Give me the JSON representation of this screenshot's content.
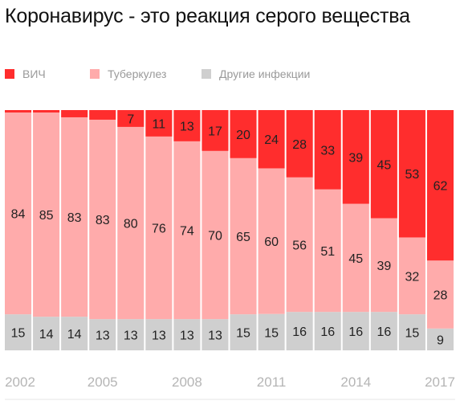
{
  "title": "Коронавирус - это реакция серого вещества",
  "legend": [
    {
      "label": "ВИЧ",
      "color": "#ff2d2d"
    },
    {
      "label": "Туберкулез",
      "color": "#ffabab"
    },
    {
      "label": "Другие инфекции",
      "color": "#cfcfcf"
    }
  ],
  "chart_data": {
    "type": "bar",
    "stacked": true,
    "percent_scale": true,
    "categories": [
      "2002",
      "2003",
      "2004",
      "2005",
      "2006",
      "2007",
      "2008",
      "2009",
      "2010",
      "2011",
      "2012",
      "2013",
      "2014",
      "2015",
      "2016",
      "2017"
    ],
    "series": [
      {
        "name": "Другие инфекции",
        "color": "#cfcfcf",
        "values": [
          15,
          14,
          14,
          13,
          13,
          13,
          13,
          13,
          15,
          15,
          16,
          16,
          16,
          16,
          15,
          9
        ]
      },
      {
        "name": "Туберкулез",
        "color": "#ffabab",
        "values": [
          84,
          85,
          83,
          83,
          80,
          76,
          74,
          70,
          65,
          60,
          56,
          51,
          45,
          39,
          32,
          28
        ]
      },
      {
        "name": "ВИЧ",
        "color": "#ff2d2d",
        "values": [
          1,
          1,
          3,
          4,
          7,
          11,
          13,
          17,
          20,
          24,
          28,
          33,
          39,
          45,
          53,
          62
        ]
      }
    ],
    "shown_labels": [
      [
        true,
        true,
        true,
        true,
        true,
        true,
        true,
        true,
        true,
        true,
        true,
        true,
        true,
        true,
        true,
        true
      ],
      [
        true,
        true,
        true,
        true,
        true,
        true,
        true,
        true,
        true,
        true,
        true,
        true,
        true,
        true,
        true,
        true
      ],
      [
        false,
        false,
        false,
        false,
        true,
        true,
        true,
        true,
        true,
        true,
        true,
        true,
        true,
        true,
        true,
        true
      ]
    ],
    "x_tick_labels": [
      "2002",
      "2005",
      "2008",
      "2011",
      "2014",
      "2017"
    ],
    "ylim": [
      0,
      100
    ],
    "legend_position": "top-left",
    "grid": false
  }
}
